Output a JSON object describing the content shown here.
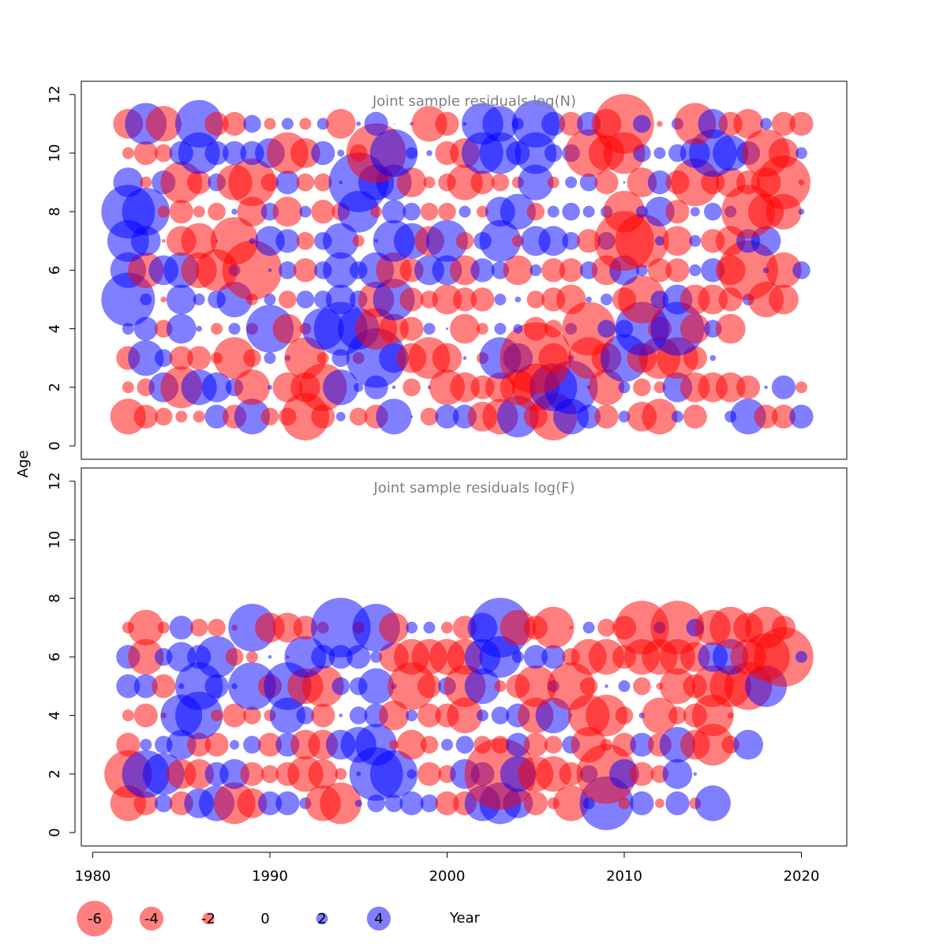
{
  "chart_data": [
    {
      "type": "bubble",
      "title": "Joint sample residuals log(N)",
      "xlabel": "Year",
      "ylabel": "Age",
      "xlim": [
        1980,
        2022
      ],
      "ylim": [
        0,
        12
      ],
      "years_start": 1982,
      "years_end": 2020,
      "ages": [
        1,
        2,
        3,
        4,
        5,
        6,
        7,
        8,
        9,
        10,
        11
      ],
      "positive_color": "#0000ff",
      "negative_color": "#ff0000",
      "residuals_by_age": [
        [
          -3,
          -2,
          -1.5,
          -1,
          -1,
          2,
          -2,
          3,
          -1.5,
          -1.5,
          -4,
          -2,
          0.8,
          -1.5,
          -2,
          3,
          0.2,
          -1.5,
          2,
          2,
          -2.5,
          -3,
          3.5,
          -2,
          -4,
          3,
          2,
          -2,
          1,
          -2.5,
          -3,
          1,
          -2,
          0,
          1,
          3,
          -2,
          -2,
          2
        ],
        [
          -1,
          -1.5,
          2.5,
          -3.5,
          3,
          2.5,
          1.5,
          -3,
          0.4,
          -2.5,
          -2.5,
          -4,
          3,
          0.8,
          2,
          0.3,
          -1.5,
          0.3,
          -3,
          -2.5,
          -2,
          -2.5,
          -3,
          -4,
          4,
          4.5,
          0.3,
          -3,
          1,
          -1.5,
          -1,
          2.5,
          -2.5,
          -2.5,
          -2.5,
          -2,
          0.3,
          2,
          -1
        ],
        [
          -2,
          3,
          1.5,
          -2,
          -2,
          -1,
          -3.5,
          -1.5,
          1,
          0.5,
          -3.5,
          -1,
          1.5,
          -1,
          5,
          2.5,
          -2.5,
          -3.5,
          -2.5,
          0.3,
          -1,
          3.5,
          2.5,
          -6,
          -2.5,
          0.5,
          -3.5,
          -2.5,
          4,
          -2.5,
          -3.5,
          -3.5,
          -2,
          0.5
        ],
        [
          1,
          2,
          -1.5,
          2.5,
          0.5,
          -1,
          1,
          -1,
          4,
          -2.5,
          -1,
          3.5,
          4.5,
          3.5,
          -3.5,
          -2.5,
          -2,
          1,
          0.2,
          -2.5,
          -1,
          1,
          0.8,
          -2,
          -1.5,
          1,
          -4.5,
          1.5,
          1.5,
          4.5,
          -2,
          4.5,
          -2.5,
          1.5,
          -2.5
        ],
        [
          4.5,
          1,
          -0.5,
          2.5,
          1,
          1.5,
          3,
          -1,
          1,
          -1.5,
          1.5,
          1.5,
          2.5,
          1.5,
          -3,
          3.5,
          -2,
          -1.5,
          -2.5,
          -2,
          -2,
          1,
          0.5,
          -1.5,
          -2,
          -2.5,
          0.5,
          1,
          -2,
          -4,
          1.5,
          2.5,
          -2.5,
          -2.5,
          -2,
          1,
          -3,
          -2.5
        ],
        [
          3,
          -3,
          2.5,
          3,
          -3,
          -3.5,
          1,
          -5,
          0.3,
          1.5,
          -2,
          1.5,
          3,
          1.5,
          3,
          -3,
          -2,
          2.5,
          2.5,
          -2.5,
          2,
          1.5,
          -2.5,
          1,
          -2,
          -2,
          1.5,
          -2.5,
          2.5,
          1,
          -2,
          -2,
          1,
          2,
          -2.5,
          -5,
          0.5,
          -3,
          1.5
        ],
        [
          3.5,
          2.5,
          -0.3,
          -2.5,
          -3,
          0.2,
          -4,
          0.5,
          2.5,
          2,
          -1.5,
          1.5,
          3,
          -1,
          0.3,
          3.5,
          3,
          -2.5,
          3.5,
          -1.5,
          1.5,
          3.5,
          -1,
          2.5,
          2.5,
          1.5,
          -2,
          1.5,
          -5,
          -4.5,
          0.8,
          -2.5,
          1,
          -2,
          -2.5,
          2,
          2.5
        ],
        [
          4.5,
          4,
          -1,
          -2,
          -1,
          -1.5,
          0.5,
          -2.5,
          1.5,
          -2.5,
          1,
          -2,
          -1.5,
          3.5,
          -1,
          2,
          1.5,
          -1.5,
          -1.5,
          1,
          -1,
          2.5,
          3,
          -1.5,
          1,
          1.5,
          1,
          1,
          -3.5,
          1,
          2.5,
          -2,
          0.8,
          1.5,
          1,
          -4.5,
          -3,
          -3,
          0.5
        ],
        [
          2.5,
          -1,
          2,
          -3.5,
          -2,
          1.5,
          -3,
          -4,
          -1.5,
          2,
          -1.5,
          -1.5,
          0.3,
          5,
          3,
          3,
          -2.5,
          -1,
          -1.5,
          -3,
          -2,
          -1.5,
          -1,
          3,
          -1,
          1,
          1.5,
          -2,
          0.2,
          -2.5,
          2,
          -2,
          -4,
          -2,
          -2.5,
          -2,
          -2.5,
          -4.5,
          -0.5
        ],
        [
          -1,
          -2,
          -1.5,
          2,
          3.5,
          2,
          2,
          2,
          2.5,
          -3.5,
          -2.5,
          2,
          0.6,
          -1.5,
          -5,
          4,
          1,
          0.5,
          -2,
          -2.5,
          3.5,
          3.5,
          2,
          3.5,
          1.5,
          1.5,
          -4,
          -3,
          -3.5,
          1.5,
          1,
          1.5,
          2.5,
          4,
          3,
          2,
          -4,
          -2.5,
          1
        ],
        [
          -2.5,
          3.5,
          -3,
          -0.1,
          4,
          -2,
          -2,
          1.5,
          -1,
          1,
          -1,
          1,
          -2.5,
          0.4,
          2,
          -0.1,
          0.3,
          -3,
          -2,
          0.3,
          3.5,
          3,
          1,
          4,
          2,
          -2,
          2,
          -2.5,
          -5,
          1.5,
          -0.5,
          1,
          -3.5,
          2.5,
          -2,
          -2.5,
          1,
          -2,
          -2
        ]
      ]
    },
    {
      "type": "bubble",
      "title": "Joint sample residuals log(F)",
      "xlabel": "Year",
      "ylabel": "Age",
      "xlim": [
        1980,
        2022
      ],
      "ylim": [
        0,
        12
      ],
      "years_start": 1982,
      "years_end": 2020,
      "ages": [
        1,
        2,
        3,
        4,
        5,
        6,
        7
      ],
      "positive_color": "#0000ff",
      "negative_color": "#ff0000",
      "residuals_by_age": [
        [
          -3,
          -2,
          1.5,
          -2,
          2.5,
          3,
          -3.5,
          -2.5,
          2,
          2,
          1,
          -3,
          -3.5,
          0.6,
          1.5,
          1.5,
          2,
          1.5,
          -2,
          -2,
          3,
          3.5,
          2.5,
          -2,
          -1,
          -3,
          1,
          4.5,
          -1,
          2,
          -0.8,
          2,
          -1,
          3
        ],
        [
          -4,
          4,
          3.5,
          -2.5,
          -2.5,
          2,
          2.5,
          -2,
          -1.5,
          -2,
          -3,
          -2.5,
          -1,
          0.4,
          4.5,
          4,
          0.8,
          -2,
          -1.5,
          2.5,
          2,
          -6,
          3,
          -3,
          -3,
          -2,
          1.5,
          -5,
          2.5,
          -2,
          -1.5,
          2.5,
          0.3
        ],
        [
          -2,
          1,
          1.5,
          2.5,
          -2,
          -2,
          0.8,
          1.5,
          -2,
          2,
          -2.5,
          -2.5,
          2.5,
          3,
          3.5,
          -0.8,
          -2.5,
          -1.5,
          1,
          1.5,
          -1.5,
          -1.5,
          2,
          -2,
          -1.5,
          1.5,
          -3,
          -1,
          -2,
          2,
          -2,
          3,
          -2.5,
          -3.5,
          -1.5,
          2.5
        ],
        [
          -1,
          -2,
          -0.5,
          3.5,
          4,
          -1,
          -2,
          -1.5,
          -1,
          3,
          1.5,
          -2,
          0.3,
          1.5,
          2,
          -2.5,
          1,
          -2,
          -2,
          -3,
          1,
          1.5,
          2,
          -3,
          3,
          0.2,
          -3.5,
          -3.5,
          -1.5,
          0.5,
          -3,
          -1.5,
          -2,
          -3.5,
          -0.5
        ],
        [
          2,
          2,
          -2,
          0.5,
          4,
          2,
          0.5,
          4,
          -2,
          4,
          -3,
          -3.5,
          1.5,
          1.5,
          3,
          0.5,
          -4,
          -2,
          1.5,
          -3.5,
          3,
          -1,
          -2,
          -3.5,
          1,
          -4,
          -1.5,
          0.3,
          1,
          -1.5,
          -0.6,
          -3,
          -2,
          -3.5,
          -3.5,
          -4,
          3.5
        ],
        [
          2,
          -3,
          1.5,
          2.5,
          2,
          3.5,
          -1.5,
          -1,
          0.3,
          -0.3,
          3.5,
          2,
          2,
          2,
          1,
          -2.5,
          -3,
          -3,
          -3,
          -3,
          3,
          3.5,
          1,
          2,
          2,
          -1.5,
          -3,
          -3,
          -2,
          -3,
          -3,
          -3,
          -2.5,
          2.5,
          3,
          -3,
          -4,
          -5,
          1
        ],
        [
          -1,
          -3,
          -1,
          2,
          -1.5,
          -1.5,
          -0.5,
          4,
          -2.5,
          -2.5,
          -2,
          -1,
          5,
          -1,
          4,
          -2.5,
          1,
          1,
          -1,
          -2,
          2.5,
          5,
          -3,
          -2,
          -3.5,
          -0.3,
          1,
          -1.5,
          -2,
          -4.5,
          1,
          -4.5,
          1.5,
          -3,
          -3.5,
          -2.5,
          -3.5,
          -2
        ]
      ]
    }
  ],
  "axes": {
    "y_ticks": [
      "0",
      "2",
      "4",
      "6",
      "8",
      "10",
      "12"
    ],
    "x_ticks": [
      "1980",
      "1990",
      "2000",
      "2010",
      "2020"
    ],
    "y_label": "Age",
    "x_label": "Year"
  },
  "legend": {
    "items": [
      {
        "label": "-6",
        "value": -6
      },
      {
        "label": "-4",
        "value": -4
      },
      {
        "label": "-2",
        "value": -2
      },
      {
        "label": "0",
        "value": 0
      },
      {
        "label": "2",
        "value": 2
      },
      {
        "label": "4",
        "value": 4
      }
    ],
    "year_label": "Year"
  },
  "colors": {
    "positive": "#0000ff",
    "negative": "#ff0000",
    "title": "#808080"
  }
}
